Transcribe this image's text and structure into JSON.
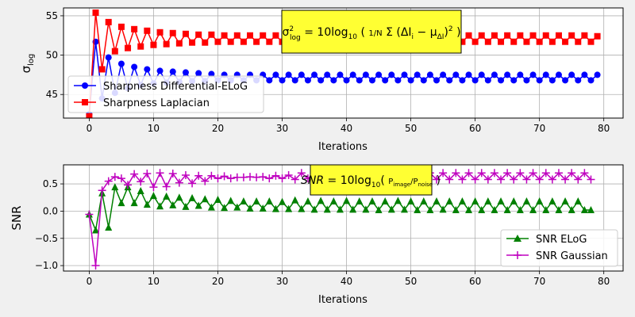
{
  "chart_data": [
    {
      "type": "line",
      "xlabel": "Iterations",
      "ylabel": "σ_log",
      "xlim": [
        -4,
        83
      ],
      "ylim": [
        42,
        56
      ],
      "xticks": [
        0,
        10,
        20,
        30,
        40,
        50,
        60,
        70,
        80
      ],
      "yticks": [
        45,
        50,
        55
      ],
      "grid": true,
      "legend_placement": "center-left",
      "annotation": "σ²_log = 10log10( (1/N) Σ_{i=1}^{N} (ΔI_i − μ_ΔI)² )",
      "x": [
        0,
        1,
        2,
        3,
        4,
        5,
        6,
        7,
        8,
        9,
        10,
        11,
        12,
        13,
        14,
        15,
        16,
        17,
        18,
        19,
        20,
        21,
        22,
        23,
        24,
        25,
        26,
        27,
        28,
        29,
        30,
        31,
        32,
        33,
        34,
        35,
        36,
        37,
        38,
        39,
        40,
        41,
        42,
        43,
        44,
        45,
        46,
        47,
        48,
        49,
        50,
        51,
        52,
        53,
        54,
        55,
        56,
        57,
        58,
        59,
        60,
        61,
        62,
        63,
        64,
        65,
        66,
        67,
        68,
        69,
        70,
        71,
        72,
        73,
        74,
        75,
        76,
        77,
        78,
        79
      ],
      "series": [
        {
          "name": "Sharpness Differential-ELoG",
          "color": "#0000ff",
          "marker": "circle",
          "values": [
            42.5,
            51.7,
            44.5,
            49.7,
            45.2,
            48.9,
            45.8,
            48.5,
            46.2,
            48.2,
            46.4,
            48.0,
            46.5,
            47.9,
            46.6,
            47.8,
            46.7,
            47.7,
            46.7,
            47.6,
            46.8,
            47.5,
            46.8,
            47.5,
            46.8,
            47.5,
            46.8,
            47.5,
            46.8,
            47.5,
            46.8,
            47.5,
            46.8,
            47.5,
            46.8,
            47.5,
            46.8,
            47.5,
            46.8,
            47.5,
            46.8,
            47.5,
            46.8,
            47.5,
            46.8,
            47.5,
            46.8,
            47.5,
            46.8,
            47.5,
            46.8,
            47.5,
            46.8,
            47.5,
            46.8,
            47.5,
            46.8,
            47.5,
            46.8,
            47.5,
            46.8,
            47.5,
            46.8,
            47.5,
            46.8,
            47.5,
            46.8,
            47.5,
            46.8,
            47.5,
            46.8,
            47.5,
            46.8,
            47.5,
            46.8,
            47.5,
            46.8,
            47.5,
            46.8,
            47.5
          ]
        },
        {
          "name": "Sharpness Laplacian",
          "color": "#ff0000",
          "marker": "square",
          "values": [
            42.2,
            55.4,
            48.2,
            54.2,
            50.5,
            53.6,
            50.9,
            53.3,
            51.1,
            53.1,
            51.3,
            52.9,
            51.4,
            52.8,
            51.5,
            52.7,
            51.6,
            52.6,
            51.6,
            52.6,
            51.7,
            52.5,
            51.7,
            52.5,
            51.7,
            52.5,
            51.7,
            52.5,
            51.7,
            52.5,
            51.7,
            52.5,
            51.7,
            52.5,
            51.7,
            52.5,
            51.7,
            52.5,
            51.7,
            52.5,
            51.7,
            52.5,
            51.7,
            52.5,
            51.7,
            52.5,
            51.7,
            52.5,
            51.7,
            52.5,
            51.7,
            52.5,
            51.7,
            52.5,
            51.7,
            52.5,
            51.7,
            52.5,
            51.7,
            52.5,
            51.7,
            52.5,
            51.7,
            52.5,
            51.7,
            52.5,
            51.7,
            52.5,
            51.7,
            52.5,
            51.7,
            52.5,
            51.7,
            52.5,
            51.7,
            52.5,
            51.7,
            52.5,
            51.7,
            52.4
          ]
        }
      ]
    },
    {
      "type": "line",
      "xlabel": "Iterations",
      "ylabel": "SNR",
      "xlim": [
        -4,
        83
      ],
      "ylim": [
        -1.1,
        0.85
      ],
      "xticks": [
        0,
        10,
        20,
        30,
        40,
        50,
        60,
        70,
        80
      ],
      "yticks": [
        -1.0,
        -0.5,
        0.0,
        0.5
      ],
      "grid": true,
      "legend_placement": "lower-right",
      "annotation": "SNR = 10log10( P_image / P_noise )",
      "x": [
        0,
        1,
        2,
        3,
        4,
        5,
        6,
        7,
        8,
        9,
        10,
        11,
        12,
        13,
        14,
        15,
        16,
        17,
        18,
        19,
        20,
        21,
        22,
        23,
        24,
        25,
        26,
        27,
        28,
        29,
        30,
        31,
        32,
        33,
        34,
        35,
        36,
        37,
        38,
        39,
        40,
        41,
        42,
        43,
        44,
        45,
        46,
        47,
        48,
        49,
        50,
        51,
        52,
        53,
        54,
        55,
        56,
        57,
        58,
        59,
        60,
        61,
        62,
        63,
        64,
        65,
        66,
        67,
        68,
        69,
        70,
        71,
        72,
        73,
        74,
        75,
        76,
        77,
        78
      ],
      "series": [
        {
          "name": "SNR ELoG",
          "color": "#008000",
          "marker": "triangle",
          "values": [
            -0.06,
            -0.35,
            0.33,
            -0.3,
            0.44,
            0.15,
            0.44,
            0.15,
            0.37,
            0.12,
            0.28,
            0.09,
            0.27,
            0.11,
            0.25,
            0.08,
            0.24,
            0.1,
            0.22,
            0.07,
            0.21,
            0.06,
            0.19,
            0.07,
            0.18,
            0.05,
            0.18,
            0.05,
            0.18,
            0.04,
            0.17,
            0.04,
            0.2,
            0.04,
            0.18,
            0.03,
            0.19,
            0.03,
            0.18,
            0.03,
            0.19,
            0.03,
            0.18,
            0.03,
            0.18,
            0.02,
            0.18,
            0.03,
            0.19,
            0.03,
            0.18,
            0.02,
            0.18,
            0.02,
            0.18,
            0.03,
            0.18,
            0.02,
            0.18,
            0.02,
            0.18,
            0.02,
            0.18,
            0.02,
            0.18,
            0.02,
            0.18,
            0.02,
            0.18,
            0.02,
            0.18,
            0.02,
            0.18,
            0.02,
            0.18,
            0.02,
            0.18,
            0.02,
            0.02
          ]
        },
        {
          "name": "SNR Gaussian",
          "color": "#bf00bf",
          "marker": "plus",
          "values": [
            -0.06,
            -1.0,
            0.38,
            0.55,
            0.63,
            0.6,
            0.48,
            0.68,
            0.54,
            0.69,
            0.44,
            0.7,
            0.45,
            0.69,
            0.52,
            0.66,
            0.51,
            0.65,
            0.55,
            0.65,
            0.6,
            0.64,
            0.6,
            0.62,
            0.62,
            0.63,
            0.62,
            0.63,
            0.6,
            0.65,
            0.6,
            0.66,
            0.58,
            0.7,
            0.6,
            0.68,
            0.6,
            0.69,
            0.6,
            0.7,
            0.6,
            0.7,
            0.58,
            0.7,
            0.58,
            0.7,
            0.58,
            0.7,
            0.58,
            0.7,
            0.58,
            0.7,
            0.58,
            0.7,
            0.58,
            0.7,
            0.58,
            0.7,
            0.58,
            0.7,
            0.58,
            0.7,
            0.58,
            0.7,
            0.58,
            0.7,
            0.58,
            0.7,
            0.58,
            0.7,
            0.58,
            0.7,
            0.58,
            0.7,
            0.58,
            0.7,
            0.58,
            0.7,
            0.58
          ]
        }
      ]
    }
  ]
}
